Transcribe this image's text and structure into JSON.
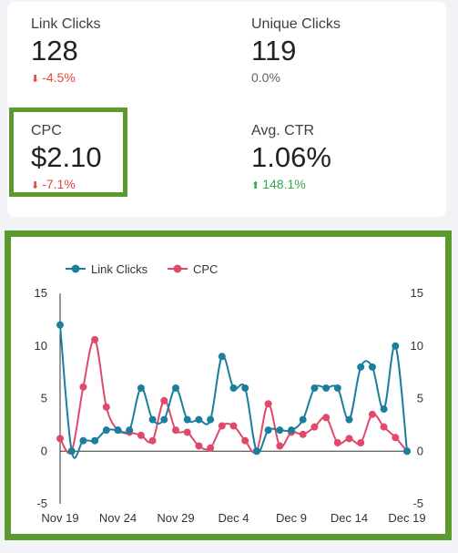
{
  "metrics": [
    {
      "label": "Link Clicks",
      "value": "128",
      "delta": "-4.5%",
      "trend": "down"
    },
    {
      "label": "Unique Clicks",
      "value": "119",
      "delta": "0.0%",
      "trend": "flat"
    },
    {
      "label": "CPC",
      "value": "$2.10",
      "delta": "-7.1%",
      "trend": "down"
    },
    {
      "label": "Avg. CTR",
      "value": "1.06%",
      "delta": "148.1%",
      "trend": "up"
    }
  ],
  "colors": {
    "link_clicks": "#1a7f9c",
    "cpc": "#e04a6a",
    "highlight": "#5a9a2e",
    "negative": "#e8453c",
    "positive": "#34a853"
  },
  "chart_data": {
    "type": "line",
    "legend_position": "top-left",
    "grid": false,
    "x": [
      "Nov 19",
      "Nov 20",
      "Nov 21",
      "Nov 22",
      "Nov 23",
      "Nov 24",
      "Nov 25",
      "Nov 26",
      "Nov 27",
      "Nov 28",
      "Nov 29",
      "Nov 30",
      "Dec 1",
      "Dec 2",
      "Dec 3",
      "Dec 4",
      "Dec 5",
      "Dec 6",
      "Dec 7",
      "Dec 8",
      "Dec 9",
      "Dec 10",
      "Dec 11",
      "Dec 12",
      "Dec 13",
      "Dec 14",
      "Dec 15",
      "Dec 16",
      "Dec 17",
      "Dec 18",
      "Dec 19"
    ],
    "x_tick_labels": [
      "Nov 19",
      "Nov 24",
      "Nov 29",
      "Dec 4",
      "Dec 9",
      "Dec 14",
      "Dec 19"
    ],
    "y_tick_labels": [
      "15",
      "10",
      "5",
      "0",
      "-5"
    ],
    "ylim": [
      -5,
      15
    ],
    "series": [
      {
        "name": "Link Clicks",
        "color": "#1a7f9c",
        "values": [
          12,
          0,
          1,
          1,
          2,
          2,
          2,
          6,
          3,
          3,
          6,
          3,
          3,
          3,
          9,
          6,
          6,
          0,
          2,
          2,
          2,
          3,
          6,
          6,
          6,
          3,
          8,
          8,
          4,
          10,
          0
        ]
      },
      {
        "name": "CPC",
        "color": "#e04a6a",
        "values": [
          1.2,
          0,
          6.1,
          10.6,
          4.2,
          2.0,
          1.8,
          1.5,
          1.0,
          4.8,
          2.0,
          1.8,
          0.5,
          0.3,
          2.4,
          2.4,
          1.0,
          0,
          4.5,
          0.5,
          1.8,
          1.6,
          2.3,
          3.2,
          0.8,
          1.2,
          0.8,
          3.5,
          2.3,
          1.3,
          0
        ]
      }
    ]
  }
}
